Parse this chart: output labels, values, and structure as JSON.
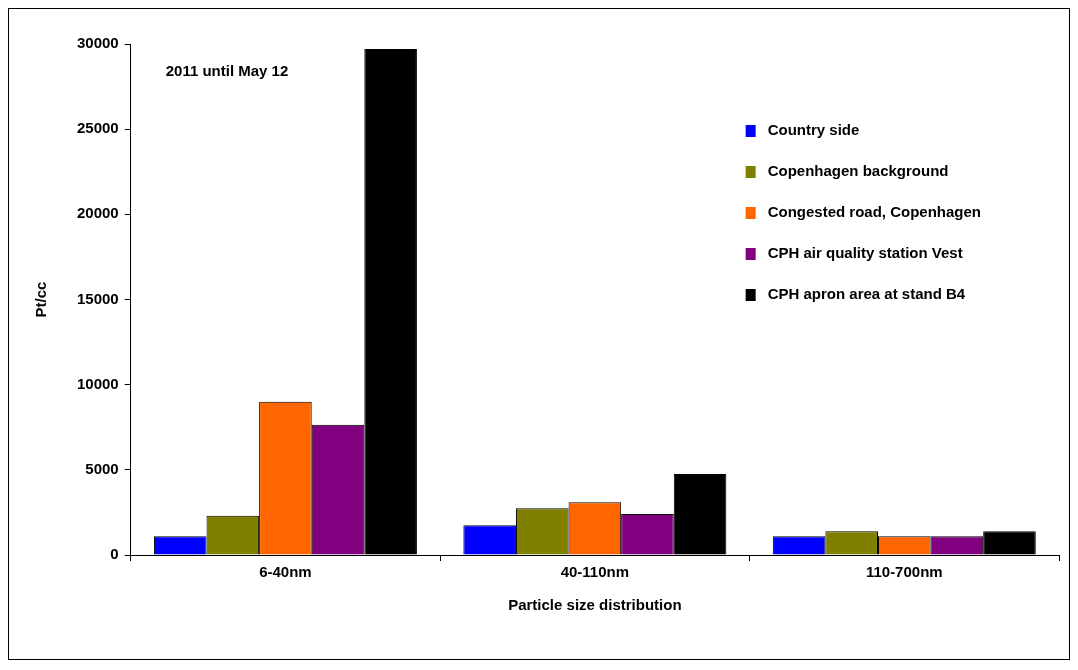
{
  "chart_data": {
    "type": "bar",
    "xlabel": "Particle size distribution",
    "ylabel": "Pt/cc",
    "categories": [
      "6-40nm",
      "40-110nm",
      "110-700nm"
    ],
    "series": [
      {
        "name": "Country side",
        "color": "#0000ff",
        "values": [
          1100,
          1750,
          1100
        ]
      },
      {
        "name": "Copenhagen background",
        "color": "#808000",
        "values": [
          2300,
          2750,
          1400
        ]
      },
      {
        "name": "Congested road, Copenhagen",
        "color": "#ff6600",
        "values": [
          9000,
          3100,
          1100
        ]
      },
      {
        "name": "CPH air quality station Vest",
        "color": "#800080",
        "values": [
          7650,
          2400,
          1100
        ]
      },
      {
        "name": "CPH apron area at stand B4",
        "color": "#000000",
        "values": [
          29700,
          4750,
          1400
        ]
      }
    ],
    "ylim": [
      0,
      30000
    ],
    "yticks": [
      0,
      5000,
      10000,
      15000,
      20000,
      25000,
      30000
    ],
    "grid": false,
    "legend": "top right",
    "annotations": [
      "2011 until May 12"
    ]
  }
}
